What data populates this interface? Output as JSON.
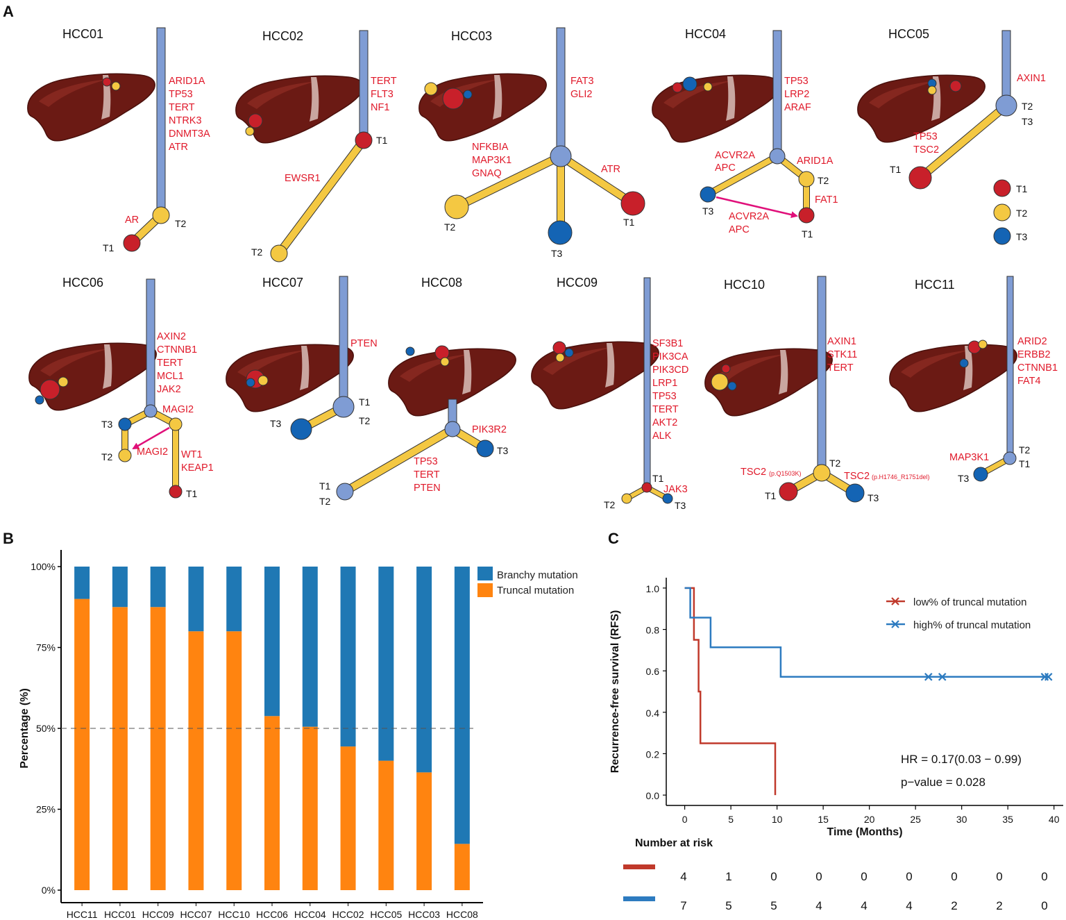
{
  "panels": {
    "A": "A",
    "B": "B",
    "C": "C"
  },
  "colors": {
    "trunk": "#7f9cd4",
    "branch": "#f4c842",
    "t1": "#c8202a",
    "t2": "#f4c842",
    "t3": "#1464b4",
    "gene": "#e0192a",
    "arrow": "#e0107a",
    "liver": "#6b1a14",
    "branchy": "#1f78b4",
    "truncal": "#ff8410",
    "low": "#c0392b",
    "high": "#2d7bc0"
  },
  "tumor_legend": [
    "T1",
    "T2",
    "T3"
  ],
  "trees": {
    "hcc01": {
      "title": "HCC01",
      "trunk_genes": [
        "ARID1A",
        "TP53",
        "TERT",
        "NTRK3",
        "DNMT3A",
        "ATR"
      ],
      "branch_genes": [
        "AR"
      ],
      "labels": [
        "T2",
        "T1"
      ]
    },
    "hcc02": {
      "title": "HCC02",
      "trunk_genes": [
        "TERT",
        "FLT3",
        "NF1"
      ],
      "branch_genes": [
        "EWSR1"
      ],
      "labels": [
        "T1",
        "T2"
      ]
    },
    "hcc03": {
      "title": "HCC03",
      "trunk_genes": [
        "FAT3",
        "GLI2"
      ],
      "left_genes": [
        "NFKBIA",
        "MAP3K1",
        "GNAQ"
      ],
      "right_genes": [
        "ATR"
      ],
      "labels": [
        "T2",
        "T3",
        "T1"
      ]
    },
    "hcc04": {
      "title": "HCC04",
      "trunk_genes": [
        "TP53",
        "LRP2",
        "ARAF"
      ],
      "left_genes": [
        "ACVR2A",
        "APC"
      ],
      "right_genes": [
        "ARID1A"
      ],
      "sub_genes": [
        "FAT1"
      ],
      "arrow_genes": [
        "ACVR2A",
        "APC"
      ],
      "labels": [
        "T3",
        "T2",
        "T1"
      ]
    },
    "hcc05": {
      "title": "HCC05",
      "trunk_genes": [
        "AXIN1"
      ],
      "branch_genes": [
        "TP53",
        "TSC2"
      ],
      "labels": [
        "T2",
        "T3",
        "T1"
      ]
    },
    "hcc06": {
      "title": "HCC06",
      "trunk_genes": [
        "AXIN2",
        "CTNNB1",
        "TERT",
        "MCL1",
        "JAK2"
      ],
      "right_genes": [
        "MAGI2"
      ],
      "arrow_genes": [
        "MAGI2"
      ],
      "sub_genes": [
        "WT1",
        "KEAP1"
      ],
      "labels": [
        "T3",
        "T2",
        "T1"
      ]
    },
    "hcc07": {
      "title": "HCC07",
      "trunk_genes": [
        "PTEN"
      ],
      "labels": [
        "T1",
        "T2",
        "T3"
      ]
    },
    "hcc08": {
      "title": "HCC08",
      "right_genes": [
        "PIK3R2"
      ],
      "left_genes": [
        "TP53",
        "TERT",
        "PTEN"
      ],
      "labels": [
        "T3",
        "T1",
        "T2"
      ]
    },
    "hcc09": {
      "title": "HCC09",
      "trunk_genes": [
        "SF3B1",
        "PIK3CA",
        "PIK3CD",
        "LRP1",
        "TP53",
        "TERT",
        "AKT2",
        "ALK"
      ],
      "right_genes": [
        "JAK3"
      ],
      "labels": [
        "T1",
        "T2",
        "T3"
      ]
    },
    "hcc10": {
      "title": "HCC10",
      "trunk_genes": [
        "AXIN1",
        "STK11",
        "TERT"
      ],
      "left_gene": "TSC2",
      "left_sub": "(p.Q1503K)",
      "right_gene": "TSC2",
      "right_sub": "(p.H1746_R1751del)",
      "labels": [
        "T2",
        "T1",
        "T3"
      ]
    },
    "hcc11": {
      "title": "HCC11",
      "trunk_genes": [
        "ARID2",
        "ERBB2",
        "CTNNB1",
        "FAT4"
      ],
      "branch_genes": [
        "MAP3K1"
      ],
      "labels": [
        "T2",
        "T1",
        "T3"
      ]
    }
  },
  "chart_data": [
    {
      "type": "bar",
      "stacked": true,
      "categories": [
        "HCC11",
        "HCC01",
        "HCC09",
        "HCC07",
        "HCC10",
        "HCC06",
        "HCC04",
        "HCC02",
        "HCC05",
        "HCC03",
        "HCC08"
      ],
      "series": [
        {
          "name": "Truncal mutation",
          "values": [
            90,
            87.5,
            87.5,
            80,
            80,
            53.8,
            50.5,
            44.4,
            40,
            36.4,
            14.3
          ]
        },
        {
          "name": "Branchy mutation",
          "values": [
            10,
            12.5,
            12.5,
            20,
            20,
            46.2,
            49.5,
            55.6,
            60,
            63.6,
            85.7
          ]
        }
      ],
      "ylabel": "Percentage (%)",
      "yticks": [
        "0%",
        "25%",
        "50%",
        "75%",
        "100%"
      ],
      "ylim": [
        0,
        100
      ],
      "reference_line": 50,
      "legend": [
        "Branchy mutation",
        "Truncal mutation"
      ]
    },
    {
      "type": "line",
      "step": true,
      "xlabel": "Time (Months)",
      "ylabel": "Recurrence-free survival (RFS)",
      "xlim": [
        -2,
        41
      ],
      "ylim": [
        -0.05,
        1.05
      ],
      "xticks": [
        0,
        5,
        10,
        15,
        20,
        25,
        30,
        35,
        40
      ],
      "yticks": [
        "0.0",
        "0.2",
        "0.4",
        "0.6",
        "0.8",
        "1.0"
      ],
      "series": [
        {
          "name": "low% of truncal mutation",
          "steps": [
            [
              0,
              1.0
            ],
            [
              1.0,
              1.0
            ],
            [
              1.0,
              0.75
            ],
            [
              1.5,
              0.75
            ],
            [
              1.5,
              0.5
            ],
            [
              1.7,
              0.5
            ],
            [
              1.7,
              0.25
            ],
            [
              9.8,
              0.25
            ],
            [
              9.8,
              0.0
            ]
          ],
          "censored": []
        },
        {
          "name": "high% of truncal mutation",
          "steps": [
            [
              0,
              1.0
            ],
            [
              0.6,
              1.0
            ],
            [
              0.6,
              0.857
            ],
            [
              2.8,
              0.857
            ],
            [
              2.8,
              0.714
            ],
            [
              10.4,
              0.714
            ],
            [
              10.4,
              0.571
            ],
            [
              39.5,
              0.571
            ]
          ],
          "censored": [
            [
              26.4,
              0.571
            ],
            [
              27.9,
              0.571
            ],
            [
              39.0,
              0.571
            ],
            [
              39.4,
              0.571
            ]
          ]
        }
      ],
      "hr_text": "HR = 0.17(0.03 − 0.99)",
      "p_text": "p−value = 0.028",
      "risk_title": "Number at risk",
      "risk_low": [
        4,
        1,
        0,
        0,
        0,
        0,
        0,
        0,
        0
      ],
      "risk_high": [
        7,
        5,
        5,
        4,
        4,
        4,
        2,
        2,
        0
      ]
    }
  ]
}
